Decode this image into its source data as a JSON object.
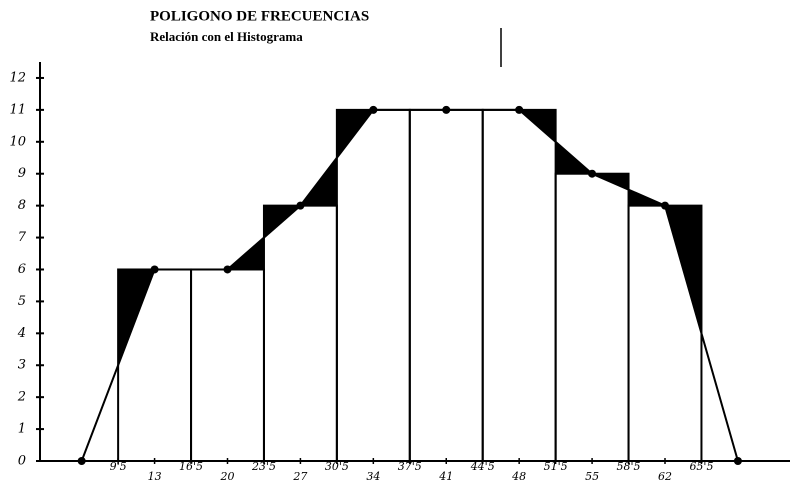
{
  "chart_data": {
    "type": "histogram",
    "title": "POLIGONO DE FRECUENCIAS",
    "subtitle": "Relación con el Histograma",
    "bins": [
      9.5,
      16.5,
      23.5,
      30.5,
      37.5,
      44.5,
      51.5,
      58.5,
      65.5
    ],
    "counts": [
      6,
      6,
      8,
      11,
      11,
      11,
      9,
      8
    ],
    "polygon": {
      "x": [
        6,
        13,
        20,
        27,
        34,
        41,
        48,
        55,
        62,
        69
      ],
      "values": [
        0,
        6,
        6,
        8,
        11,
        11,
        11,
        9,
        8,
        0
      ]
    },
    "xlim": [
      2,
      74
    ],
    "ylim": [
      0,
      12.5
    ],
    "xticks": [
      {
        "value": 9.5,
        "label": "9'5"
      },
      13,
      {
        "value": 16.5,
        "label": "16'5"
      },
      20,
      {
        "value": 23.5,
        "label": "23'5"
      },
      27,
      {
        "value": 30.5,
        "label": "30'5"
      },
      34,
      {
        "value": 37.5,
        "label": "37'5"
      },
      41,
      {
        "value": 44.5,
        "label": "44'5"
      },
      48,
      {
        "value": 51.5,
        "label": "51'5"
      },
      55,
      {
        "value": 58.5,
        "label": "58'5"
      },
      62,
      {
        "value": 65.5,
        "label": "65'5"
      }
    ],
    "yticks": [
      0,
      1,
      2,
      3,
      4,
      5,
      6,
      7,
      8,
      9,
      10,
      11,
      12
    ],
    "color": "#000000"
  }
}
